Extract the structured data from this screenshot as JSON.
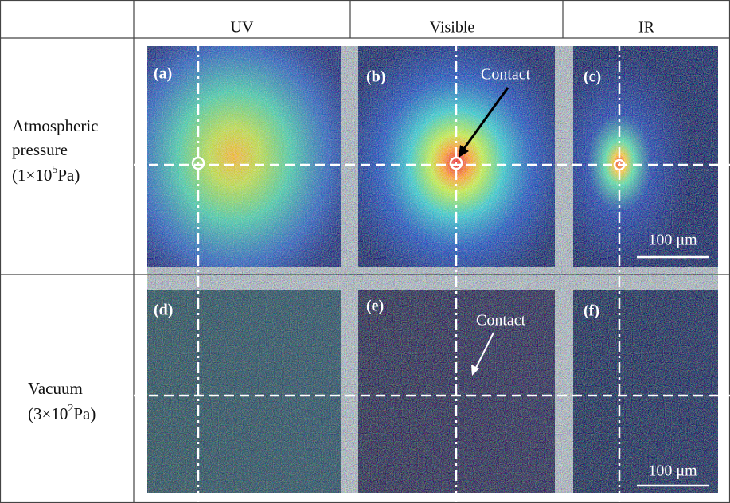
{
  "table": {
    "columns": [
      "UV",
      "Visible",
      "IR"
    ],
    "rows": [
      {
        "label_lines": [
          "Atmospheric",
          "pressure"
        ],
        "cond_open": "(1×10",
        "cond_exp": "5",
        "cond_unit": "Pa)"
      },
      {
        "label_lines": [
          "Vacuum"
        ],
        "cond_open": "(3×10",
        "cond_exp": "2",
        "cond_unit": "Pa)"
      }
    ],
    "panels": [
      "(a)",
      "(b)",
      "(c)",
      "(d)",
      "(e)",
      "(f)"
    ],
    "annotations": [
      "Contact",
      "Contact"
    ],
    "scale_bars": [
      "100 μm",
      "100 μm"
    ]
  }
}
